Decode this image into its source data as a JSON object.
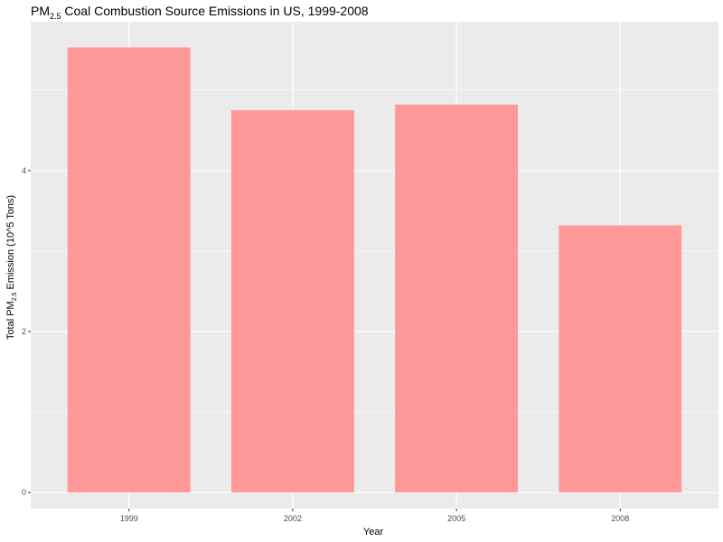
{
  "chart_data": {
    "type": "bar",
    "title": {
      "prefix": "PM",
      "subscript": "2.5",
      "suffix": " Coal Combustion Source Emissions in US, 1999-2008"
    },
    "xlabel": "Year",
    "ylabel": {
      "prefix": "Total PM",
      "subscript": "2.5",
      "suffix": " Emission (10^5 Tons)"
    },
    "categories": [
      "1999",
      "2002",
      "2005",
      "2008"
    ],
    "values": [
      5.53,
      4.75,
      4.82,
      3.32
    ],
    "ylim": [
      -0.2,
      5.85
    ],
    "y_ticks": [
      0,
      2,
      4
    ],
    "y_tick_labels": [
      "0",
      "2",
      "4"
    ],
    "grid": true,
    "colors": {
      "bar": "#ff9999",
      "panel": "#ebebeb",
      "grid_major": "#ffffff",
      "grid_minor": "#f5f5f5"
    }
  }
}
